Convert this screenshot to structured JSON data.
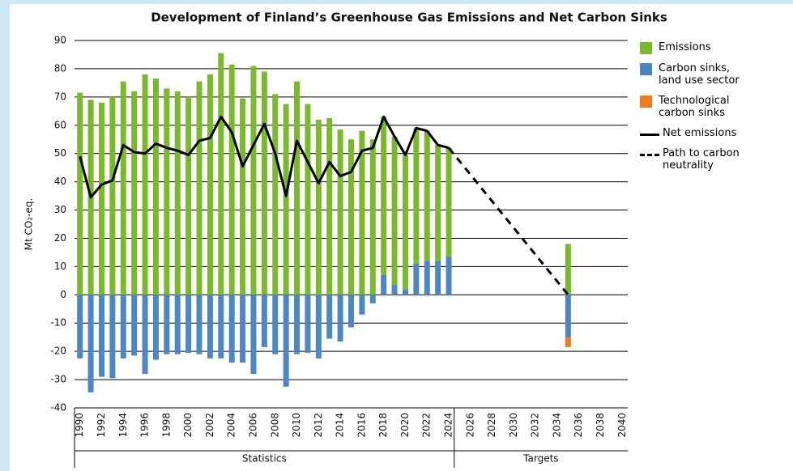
{
  "chart_data": {
    "type": "bar",
    "title": "Development of Finland’s Greenhouse Gas Emissions and Net Carbon Sinks",
    "y_label": "Mt CO₂-eq.",
    "categories": [
      "1990",
      null,
      "1992",
      null,
      "1994",
      null,
      "1996",
      null,
      "1998",
      null,
      "2000",
      null,
      "2002",
      null,
      "2004",
      null,
      "2006",
      null,
      "2008",
      null,
      "2010",
      null,
      "2012",
      null,
      "2014",
      null,
      "2016",
      null,
      "2018",
      null,
      "2020",
      null,
      "2022",
      null,
      "2024",
      null,
      "2026",
      null,
      "2028",
      null,
      "2030",
      null,
      "2032",
      null,
      "2034",
      null,
      "2036",
      null,
      "2038",
      null,
      "2040"
    ],
    "x_groups": [
      {
        "label": "Statistics"
      },
      {
        "label": "Targets"
      }
    ],
    "ylim": [
      -40,
      90
    ],
    "yticks": [
      -40,
      -30,
      -20,
      -10,
      0,
      10,
      20,
      30,
      40,
      50,
      60,
      70,
      80,
      90
    ],
    "grid": true,
    "legend": "right",
    "series": [
      {
        "name": "Emissions",
        "type": "bar",
        "color": "#7ab929",
        "values": [
          71.5,
          69,
          68,
          70,
          75.5,
          72,
          78,
          76.5,
          73,
          72,
          70,
          75.5,
          78,
          85.5,
          81.5,
          69.5,
          81,
          79,
          71,
          67.5,
          75.5,
          67.5,
          62,
          62.5,
          58.5,
          55,
          58,
          55,
          56,
          52.5,
          47.5,
          48,
          46,
          41,
          38.5,
          null,
          null,
          null,
          null,
          null,
          null,
          null,
          null,
          null,
          null,
          18,
          null,
          null,
          null,
          null,
          null
        ]
      },
      {
        "name": "Carbon sinks, land use sector",
        "type": "bar",
        "color": "#4d86c6",
        "values": [
          -22.5,
          -34.5,
          -29,
          -29.5,
          -22.5,
          -21.5,
          -28,
          -23,
          -21,
          -21,
          -20.5,
          -21,
          -22.5,
          -22.5,
          -24,
          -24,
          -28,
          -18.5,
          -21,
          -32.5,
          -21,
          -20.5,
          -22.5,
          -15.5,
          -16.5,
          -11.5,
          -7,
          -3,
          7,
          3.5,
          2,
          11,
          12,
          12,
          13.5,
          null,
          null,
          null,
          null,
          null,
          null,
          null,
          null,
          null,
          null,
          -15,
          null,
          null,
          null,
          null,
          null
        ]
      },
      {
        "name": "Technological carbon sinks",
        "type": "bar",
        "color": "#f07d1a",
        "values": [
          null,
          null,
          null,
          null,
          null,
          null,
          null,
          null,
          null,
          null,
          null,
          null,
          null,
          null,
          null,
          null,
          null,
          null,
          null,
          null,
          null,
          null,
          null,
          null,
          null,
          null,
          null,
          null,
          null,
          null,
          null,
          null,
          null,
          null,
          null,
          null,
          null,
          null,
          null,
          null,
          null,
          null,
          null,
          null,
          null,
          -3.5,
          null,
          null,
          null,
          null,
          null
        ]
      },
      {
        "name": "Net emissions",
        "type": "line",
        "color": "#000000",
        "values": [
          49,
          34.5,
          39,
          40.5,
          53,
          50.5,
          50,
          53.5,
          52,
          51,
          49.5,
          54.5,
          55.5,
          63,
          57.5,
          45.5,
          53,
          60.5,
          50,
          35,
          54.5,
          47,
          39.5,
          47,
          42,
          43.5,
          51,
          52,
          63,
          56,
          49.5,
          59,
          58,
          53,
          52,
          null,
          null,
          null,
          null,
          null,
          null,
          null,
          null,
          null,
          null,
          null,
          null,
          null,
          null,
          null,
          null
        ]
      },
      {
        "name": "Path to carbon neutrality",
        "type": "line",
        "dashed": true,
        "color": "#000000",
        "x": [
          "2024",
          "2035"
        ],
        "values": [
          52,
          0
        ]
      }
    ]
  }
}
